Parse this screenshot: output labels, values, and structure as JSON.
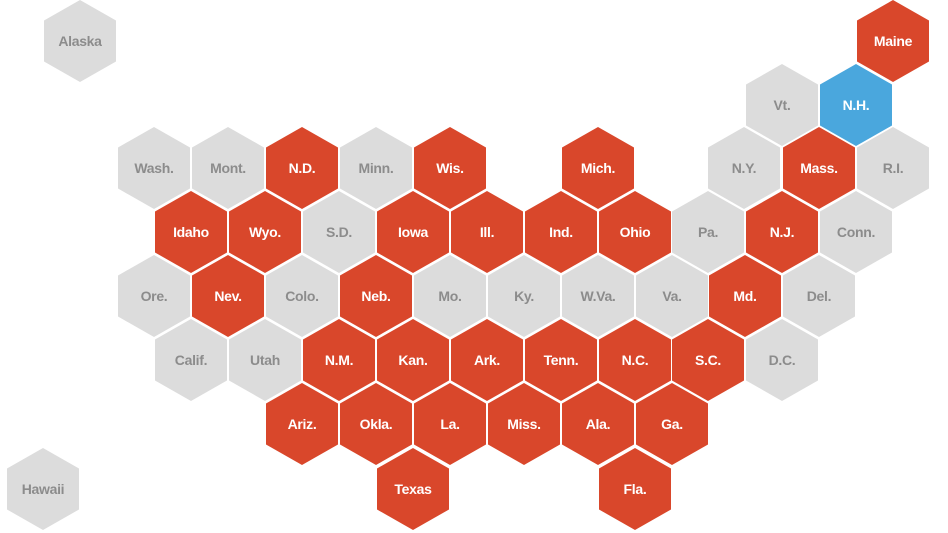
{
  "colors": {
    "red": "#d9472b",
    "gray": "#dcdcdc",
    "blue": "#4aa7dd"
  },
  "states": [
    {
      "id": "alaska",
      "label": "Alaska",
      "status": "gray"
    },
    {
      "id": "maine",
      "label": "Maine",
      "status": "red"
    },
    {
      "id": "vt",
      "label": "Vt.",
      "status": "gray"
    },
    {
      "id": "nh",
      "label": "N.H.",
      "status": "blue"
    },
    {
      "id": "wash",
      "label": "Wash.",
      "status": "gray"
    },
    {
      "id": "mont",
      "label": "Mont.",
      "status": "gray"
    },
    {
      "id": "nd",
      "label": "N.D.",
      "status": "red"
    },
    {
      "id": "minn",
      "label": "Minn.",
      "status": "gray"
    },
    {
      "id": "wis",
      "label": "Wis.",
      "status": "red"
    },
    {
      "id": "mich",
      "label": "Mich.",
      "status": "red"
    },
    {
      "id": "ny",
      "label": "N.Y.",
      "status": "gray"
    },
    {
      "id": "mass",
      "label": "Mass.",
      "status": "red"
    },
    {
      "id": "ri",
      "label": "R.I.",
      "status": "gray"
    },
    {
      "id": "idaho",
      "label": "Idaho",
      "status": "red"
    },
    {
      "id": "wyo",
      "label": "Wyo.",
      "status": "red"
    },
    {
      "id": "sd",
      "label": "S.D.",
      "status": "gray"
    },
    {
      "id": "iowa",
      "label": "Iowa",
      "status": "red"
    },
    {
      "id": "ill",
      "label": "Ill.",
      "status": "red"
    },
    {
      "id": "ind",
      "label": "Ind.",
      "status": "red"
    },
    {
      "id": "ohio",
      "label": "Ohio",
      "status": "red"
    },
    {
      "id": "pa",
      "label": "Pa.",
      "status": "gray"
    },
    {
      "id": "nj",
      "label": "N.J.",
      "status": "red"
    },
    {
      "id": "conn",
      "label": "Conn.",
      "status": "gray"
    },
    {
      "id": "ore",
      "label": "Ore.",
      "status": "gray"
    },
    {
      "id": "nev",
      "label": "Nev.",
      "status": "red"
    },
    {
      "id": "colo",
      "label": "Colo.",
      "status": "gray"
    },
    {
      "id": "neb",
      "label": "Neb.",
      "status": "red"
    },
    {
      "id": "mo",
      "label": "Mo.",
      "status": "gray"
    },
    {
      "id": "ky",
      "label": "Ky.",
      "status": "gray"
    },
    {
      "id": "wva",
      "label": "W.Va.",
      "status": "gray"
    },
    {
      "id": "va",
      "label": "Va.",
      "status": "gray"
    },
    {
      "id": "md",
      "label": "Md.",
      "status": "red"
    },
    {
      "id": "del",
      "label": "Del.",
      "status": "gray"
    },
    {
      "id": "calif",
      "label": "Calif.",
      "status": "gray"
    },
    {
      "id": "utah",
      "label": "Utah",
      "status": "gray"
    },
    {
      "id": "nm",
      "label": "N.M.",
      "status": "red"
    },
    {
      "id": "kan",
      "label": "Kan.",
      "status": "red"
    },
    {
      "id": "ark",
      "label": "Ark.",
      "status": "red"
    },
    {
      "id": "tenn",
      "label": "Tenn.",
      "status": "red"
    },
    {
      "id": "nc",
      "label": "N.C.",
      "status": "red"
    },
    {
      "id": "sc",
      "label": "S.C.",
      "status": "red"
    },
    {
      "id": "dc",
      "label": "D.C.",
      "status": "gray"
    },
    {
      "id": "ariz",
      "label": "Ariz.",
      "status": "red"
    },
    {
      "id": "okla",
      "label": "Okla.",
      "status": "red"
    },
    {
      "id": "la",
      "label": "La.",
      "status": "red"
    },
    {
      "id": "miss",
      "label": "Miss.",
      "status": "red"
    },
    {
      "id": "ala",
      "label": "Ala.",
      "status": "red"
    },
    {
      "id": "ga",
      "label": "Ga.",
      "status": "red"
    },
    {
      "id": "hawaii",
      "label": "Hawaii",
      "status": "gray"
    },
    {
      "id": "texas",
      "label": "Texas",
      "status": "red"
    },
    {
      "id": "fla",
      "label": "Fla.",
      "status": "red"
    }
  ]
}
